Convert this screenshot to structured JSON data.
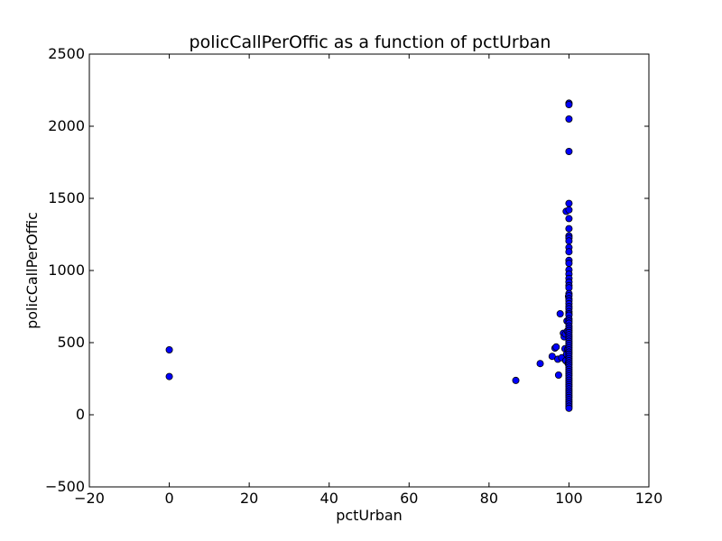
{
  "chart_data": {
    "type": "scatter",
    "title": "policCallPerOffic as a function of pctUrban",
    "xlabel": "pctUrban",
    "ylabel": "policCallPerOffic",
    "xlim": [
      -20,
      120
    ],
    "ylim": [
      -500,
      2500
    ],
    "xticks": [
      "−20",
      "0",
      "20",
      "40",
      "60",
      "80",
      "100",
      "120"
    ],
    "yticks": [
      "−500",
      "0",
      "500",
      "1000",
      "1500",
      "2000",
      "2500"
    ],
    "grid": false,
    "marker_color": "#0000ff",
    "marker_edge": "#000000",
    "points": [
      [
        0,
        450
      ],
      [
        0,
        265
      ],
      [
        86.7,
        238
      ],
      [
        92.8,
        355
      ],
      [
        95.8,
        405
      ],
      [
        96.5,
        462
      ],
      [
        96.8,
        470
      ],
      [
        97.2,
        385
      ],
      [
        97.4,
        275
      ],
      [
        97.8,
        700
      ],
      [
        98.2,
        395
      ],
      [
        98.6,
        565
      ],
      [
        98.8,
        540
      ],
      [
        99.0,
        458
      ],
      [
        99.1,
        560
      ],
      [
        99.2,
        375
      ],
      [
        99.3,
        1410
      ],
      [
        99.4,
        420
      ],
      [
        99.5,
        650
      ],
      [
        99.6,
        580
      ],
      [
        99.7,
        455
      ],
      [
        99.8,
        355
      ],
      [
        99.9,
        820
      ],
      [
        100,
        2160
      ],
      [
        100,
        2150
      ],
      [
        100,
        2050
      ],
      [
        100,
        1825
      ],
      [
        100,
        1465
      ],
      [
        100,
        1420
      ],
      [
        100,
        1360
      ],
      [
        100,
        1290
      ],
      [
        100,
        1240
      ],
      [
        100,
        1225
      ],
      [
        100,
        1205
      ],
      [
        100,
        1160
      ],
      [
        100,
        1130
      ],
      [
        100,
        1070
      ],
      [
        100,
        1050
      ],
      [
        100,
        1005
      ],
      [
        100,
        975
      ],
      [
        100,
        945
      ],
      [
        100,
        920
      ],
      [
        100,
        895
      ],
      [
        100,
        880
      ],
      [
        100,
        840
      ],
      [
        100,
        825
      ],
      [
        100,
        805
      ],
      [
        100,
        790
      ],
      [
        100,
        770
      ],
      [
        100,
        750
      ],
      [
        100,
        735
      ],
      [
        100,
        715
      ],
      [
        100,
        700
      ],
      [
        100,
        690
      ],
      [
        100,
        665
      ],
      [
        100,
        650
      ],
      [
        100,
        635
      ],
      [
        100,
        615
      ],
      [
        100,
        600
      ],
      [
        100,
        585
      ],
      [
        100,
        570
      ],
      [
        100,
        555
      ],
      [
        100,
        540
      ],
      [
        100,
        525
      ],
      [
        100,
        510
      ],
      [
        100,
        495
      ],
      [
        100,
        480
      ],
      [
        100,
        465
      ],
      [
        100,
        450
      ],
      [
        100,
        435
      ],
      [
        100,
        420
      ],
      [
        100,
        405
      ],
      [
        100,
        390
      ],
      [
        100,
        375
      ],
      [
        100,
        360
      ],
      [
        100,
        345
      ],
      [
        100,
        330
      ],
      [
        100,
        315
      ],
      [
        100,
        300
      ],
      [
        100,
        285
      ],
      [
        100,
        270
      ],
      [
        100,
        255
      ],
      [
        100,
        240
      ],
      [
        100,
        225
      ],
      [
        100,
        210
      ],
      [
        100,
        195
      ],
      [
        100,
        180
      ],
      [
        100,
        165
      ],
      [
        100,
        150
      ],
      [
        100,
        135
      ],
      [
        100,
        120
      ],
      [
        100,
        105
      ],
      [
        100,
        90
      ],
      [
        100,
        75
      ],
      [
        100,
        60
      ],
      [
        100,
        45
      ]
    ]
  }
}
